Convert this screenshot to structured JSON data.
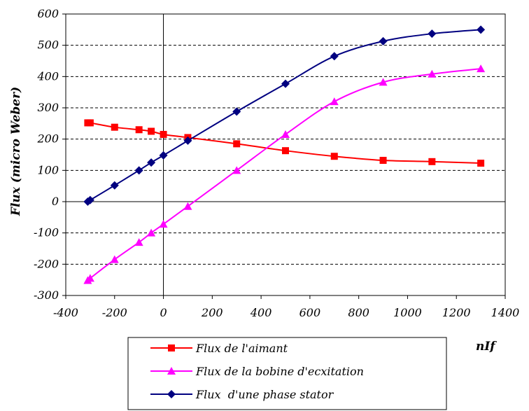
{
  "chart_data": {
    "type": "line",
    "xlabel": "nIf",
    "ylabel": "Flux (micro Weber)",
    "xlim": [
      -400,
      1400
    ],
    "ylim": [
      -300,
      600
    ],
    "x_ticks": [
      -400,
      -200,
      0,
      200,
      400,
      600,
      800,
      1000,
      1200,
      1400
    ],
    "y_ticks": [
      -300,
      -200,
      -100,
      0,
      100,
      200,
      300,
      400,
      500,
      600
    ],
    "grid": "horizontal dashed",
    "legend_position": "bottom",
    "series": [
      {
        "name": "Flux de l'aimant",
        "color": "#ff0000",
        "marker": "square",
        "x": [
          -310,
          -300,
          -200,
          -100,
          -50,
          0,
          100,
          300,
          500,
          700,
          900,
          1100,
          1300
        ],
        "y": [
          252,
          252,
          238,
          230,
          225,
          215,
          205,
          185,
          163,
          145,
          132,
          128,
          123
        ]
      },
      {
        "name": "Flux de la bobine d'ecxitation",
        "color": "#ff00ff",
        "marker": "triangle",
        "x": [
          -310,
          -300,
          -200,
          -100,
          -50,
          0,
          100,
          300,
          500,
          700,
          900,
          1100,
          1300
        ],
        "y": [
          -252,
          -245,
          -185,
          -130,
          -100,
          -72,
          -15,
          100,
          215,
          320,
          382,
          408,
          425
        ]
      },
      {
        "name": "Flux  d'une phase stator",
        "color": "#000080",
        "marker": "diamond",
        "x": [
          -310,
          -300,
          -200,
          -100,
          -50,
          0,
          100,
          300,
          500,
          700,
          900,
          1100,
          1300
        ],
        "y": [
          0,
          5,
          52,
          100,
          125,
          148,
          195,
          288,
          377,
          465,
          513,
          537,
          550
        ]
      }
    ]
  }
}
